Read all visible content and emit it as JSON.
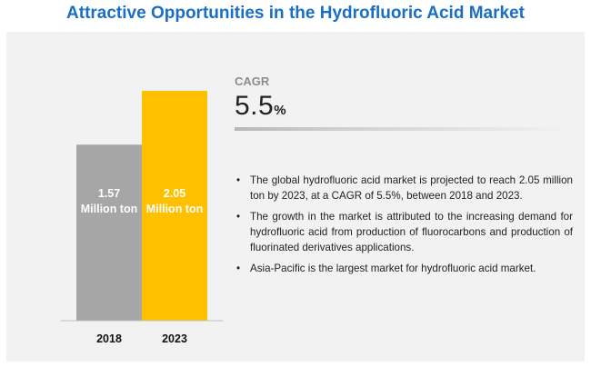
{
  "title": "Attractive Opportunities in the Hydrofluoric Acid Market",
  "cagr": {
    "label": "CAGR",
    "value": "5.5",
    "unit": "%"
  },
  "bullets": [
    "The global hydrofluoric acid market is projected to reach 2.05 million ton by 2023, at a CAGR of 5.5%, between 2018 and 2023.",
    "The growth in the market is attributed to the increasing demand for hydrofluoric acid from production of fluorocarbons and production of fluorinated derivatives applications.",
    "Asia-Pacific is the largest market for hydrofluoric acid market."
  ],
  "chart_data": {
    "type": "bar",
    "categories": [
      "2018",
      "2023"
    ],
    "values": [
      1.57,
      2.05
    ],
    "data_labels": [
      [
        "1.57",
        "Million ton"
      ],
      [
        "2.05",
        "Million ton"
      ]
    ],
    "colors": [
      "#a6a6a6",
      "#ffc000"
    ],
    "label_colors": [
      "#ffffff",
      "#ffffff"
    ],
    "ylim": [
      0,
      2.05
    ],
    "grid": false,
    "legend": "none"
  }
}
